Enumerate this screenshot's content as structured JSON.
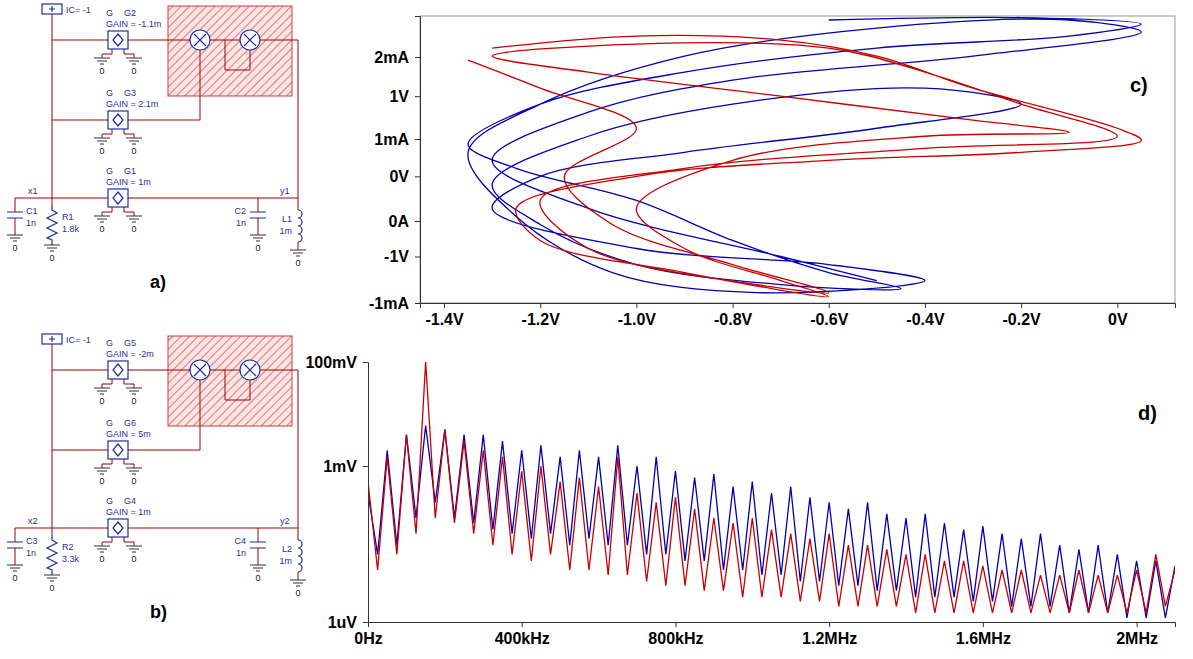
{
  "diagrams": [
    {
      "label": "a)",
      "initial_condition": "IC= -1",
      "ground": "0",
      "sources": [
        {
          "type": "G",
          "name": "G2",
          "gain": "GAIN = -1.1m"
        },
        {
          "type": "G",
          "name": "G3",
          "gain": "GAIN = 2.1m"
        },
        {
          "type": "G",
          "name": "G1",
          "gain": "GAIN = 1m"
        }
      ],
      "nodes": [
        "x1",
        "y1"
      ],
      "components": [
        {
          "name": "C1",
          "value": "1n"
        },
        {
          "name": "R1",
          "value": "1.8k"
        },
        {
          "name": "C2",
          "value": "1n"
        },
        {
          "name": "L1",
          "value": "1m"
        }
      ]
    },
    {
      "label": "b)",
      "initial_condition": "IC= -1",
      "ground": "0",
      "sources": [
        {
          "type": "G",
          "name": "G5",
          "gain": "GAIN = -2m"
        },
        {
          "type": "G",
          "name": "G6",
          "gain": "GAIN = 5m"
        },
        {
          "type": "G",
          "name": "G4",
          "gain": "GAIN = 1m"
        }
      ],
      "nodes": [
        "x2",
        "y2"
      ],
      "components": [
        {
          "name": "C3",
          "value": "1n"
        },
        {
          "name": "R2",
          "value": "3.3k"
        },
        {
          "name": "C4",
          "value": "1n"
        },
        {
          "name": "L2",
          "value": "1m"
        }
      ]
    }
  ],
  "chart_data": [
    {
      "type": "line",
      "title": "c)",
      "xlim": [
        -1.45,
        0.12
      ],
      "xticks": [
        {
          "value": -1.4,
          "label": "-1.4V"
        },
        {
          "value": -1.2,
          "label": "-1.2V"
        },
        {
          "value": -1.0,
          "label": "-1.0V"
        },
        {
          "value": -0.8,
          "label": "-0.8V"
        },
        {
          "value": -0.6,
          "label": "-0.6V"
        },
        {
          "value": -0.4,
          "label": "-0.4V"
        },
        {
          "value": -0.2,
          "label": "-0.2V"
        },
        {
          "value": 0,
          "label": "0V"
        }
      ],
      "ylim": [
        -1.58,
        2.0
      ],
      "yticks": [
        {
          "value": -1,
          "label": "-1V"
        },
        {
          "value": 0,
          "label": "0V"
        },
        {
          "value": 1,
          "label": "1V"
        }
      ],
      "y2lim": [
        -1.0,
        2.5
      ],
      "y2ticks": [
        {
          "value": -1,
          "label": "-1mA"
        },
        {
          "value": 0,
          "label": "0A"
        },
        {
          "value": 1,
          "label": "1mA"
        },
        {
          "value": 2,
          "label": "2mA"
        }
      ],
      "series": [
        {
          "color": "#0000b4",
          "line_style": "smooth",
          "x": [
            -0.6,
            -0.2,
            0.05,
            -0.1,
            -0.5,
            -0.9,
            -1.2,
            -1.35,
            -1.25,
            -1.0,
            -0.8,
            -0.6,
            -0.45,
            -0.7,
            -1.0,
            -1.2,
            -1.3,
            -1.1,
            -0.8,
            -0.4,
            -0.2,
            -0.5,
            -0.9,
            -1.2,
            -1.3,
            -1.0,
            -0.6,
            -0.4,
            -0.75,
            -1.05,
            -1.25,
            -1.35,
            -1.2,
            -0.9,
            -0.5,
            -0.1,
            0.05,
            -0.3,
            -0.8,
            -1.1,
            -1.3,
            -1.1,
            -0.7,
            -0.5
          ],
          "values": [
            1.95,
            1.98,
            1.9,
            1.75,
            1.6,
            1.3,
            0.9,
            0.4,
            0.1,
            -0.3,
            -0.8,
            -1.2,
            -1.4,
            -1.35,
            -1.1,
            -0.6,
            -0.1,
            0.5,
            0.9,
            1.1,
            0.9,
            0.6,
            0.3,
            0.0,
            -0.4,
            -0.9,
            -1.1,
            -1.3,
            -1.45,
            -1.2,
            -0.5,
            0.3,
            0.9,
            1.5,
            1.85,
            1.95,
            1.8,
            1.5,
            1.2,
            0.8,
            0.2,
            -0.4,
            -1.0,
            -1.3
          ]
        },
        {
          "color": "#c80000",
          "line_style": "smooth",
          "x": [
            -1.3,
            -1.0,
            -0.7,
            -0.5,
            -0.3,
            0.0,
            0.05,
            -0.2,
            -0.6,
            -1.0,
            -1.25,
            -1.2,
            -0.9,
            -0.6,
            -0.7,
            -0.9,
            -1.0,
            -0.8,
            -0.4,
            -0.1,
            -0.3,
            -0.7,
            -1.1,
            -1.3,
            -1.0,
            -0.6,
            -0.4,
            -0.2,
            0.0,
            -0.4,
            -0.9,
            -1.2,
            -1.1,
            -0.75,
            -0.6,
            -0.8,
            -1.05,
            -1.15,
            -1.0,
            -1.2,
            -1.35
          ],
          "values": [
            1.6,
            1.75,
            1.7,
            1.5,
            1.1,
            0.6,
            0.45,
            0.3,
            0.2,
            0.0,
            -0.4,
            -0.8,
            -1.2,
            -1.5,
            -1.3,
            -0.9,
            -0.4,
            0.2,
            0.5,
            0.55,
            0.7,
            1.0,
            1.3,
            1.5,
            1.65,
            1.6,
            1.3,
            0.9,
            0.5,
            0.35,
            0.1,
            -0.3,
            -0.9,
            -1.35,
            -1.45,
            -1.1,
            -0.6,
            0.0,
            0.6,
            1.1,
            1.45
          ]
        }
      ]
    },
    {
      "type": "line",
      "title": "d)",
      "log": "y",
      "xlim": [
        0,
        2100000
      ],
      "xticks": [
        {
          "value": 0,
          "label": "0Hz"
        },
        {
          "value": 400000,
          "label": "400kHz"
        },
        {
          "value": 800000,
          "label": "800kHz"
        },
        {
          "value": 1200000,
          "label": "1.2MHz"
        },
        {
          "value": 1600000,
          "label": "1.6MHz"
        },
        {
          "value": 2000000,
          "label": "2MHz"
        }
      ],
      "ylim": [
        1e-06,
        0.1
      ],
      "yticks": [
        {
          "value": 1e-06,
          "label": "1uV"
        },
        {
          "value": 0.001,
          "label": "1mV"
        },
        {
          "value": 0.1,
          "label": "100mV"
        }
      ],
      "x": [
        0,
        25000,
        50000,
        75000,
        100000,
        125000,
        150000,
        175000,
        200000,
        225000,
        250000,
        275000,
        300000,
        325000,
        350000,
        375000,
        400000,
        425000,
        450000,
        475000,
        500000,
        525000,
        550000,
        575000,
        600000,
        625000,
        650000,
        675000,
        700000,
        725000,
        750000,
        775000,
        800000,
        825000,
        850000,
        875000,
        900000,
        925000,
        950000,
        975000,
        1000000,
        1025000,
        1050000,
        1075000,
        1100000,
        1125000,
        1150000,
        1175000,
        1200000,
        1225000,
        1250000,
        1275000,
        1300000,
        1325000,
        1350000,
        1375000,
        1400000,
        1425000,
        1450000,
        1475000,
        1500000,
        1525000,
        1550000,
        1575000,
        1600000,
        1625000,
        1650000,
        1675000,
        1700000,
        1725000,
        1750000,
        1775000,
        1800000,
        1825000,
        1850000,
        1875000,
        1900000,
        1925000,
        1950000,
        1975000,
        2000000,
        2025000,
        2050000,
        2075000,
        2100000
      ],
      "series": [
        {
          "color": "#0000b4",
          "values": [
            0.0003,
            2e-05,
            0.002,
            3e-05,
            0.004,
            0.0001,
            0.006,
            0.0002,
            0.005,
            0.0001,
            0.004,
            8e-05,
            0.004,
            6e-05,
            0.003,
            5e-05,
            0.002,
            4e-05,
            0.0025,
            5e-05,
            0.0015,
            3e-05,
            0.002,
            4e-05,
            0.0015,
            3e-05,
            0.0025,
            3e-05,
            0.001,
            2e-05,
            0.0015,
            2e-05,
            0.0008,
            1.5e-05,
            0.0006,
            1.5e-05,
            0.0007,
            1e-05,
            0.0004,
            1e-05,
            0.0005,
            8e-06,
            0.0003,
            8e-06,
            0.0004,
            6e-06,
            0.00025,
            6e-06,
            0.0002,
            5e-06,
            0.00015,
            5e-06,
            0.0002,
            4e-06,
            0.00012,
            4e-06,
            0.0001,
            3e-06,
            0.00012,
            3e-06,
            8e-05,
            3e-06,
            6e-05,
            2.5e-06,
            7e-05,
            2.5e-06,
            5e-05,
            2e-06,
            4e-05,
            2e-06,
            5e-05,
            2e-06,
            3e-05,
            1.5e-06,
            2.5e-05,
            1.5e-06,
            3e-05,
            1.5e-06,
            2e-05,
            1.2e-06,
            1.5e-05,
            1.2e-06,
            1.5e-05,
            1.2e-06,
            1.2e-05
          ]
        },
        {
          "color": "#c80000",
          "values": [
            0.0005,
            1e-05,
            0.0015,
            2e-05,
            0.004,
            5e-05,
            0.1,
            0.0001,
            0.005,
            8e-05,
            0.003,
            5e-05,
            0.002,
            3e-05,
            0.0015,
            2e-05,
            0.0008,
            1.5e-05,
            0.001,
            2e-05,
            0.0005,
            1e-05,
            0.0006,
            1e-05,
            0.0004,
            8e-06,
            0.0015,
            8e-06,
            0.0003,
            6e-06,
            0.0002,
            5e-06,
            0.00025,
            5e-06,
            0.00015,
            4e-06,
            0.0001,
            4e-06,
            8e-05,
            3e-06,
            0.0001,
            3e-06,
            6e-05,
            3e-06,
            5e-05,
            2.5e-06,
            4e-05,
            2.5e-06,
            5e-05,
            2e-06,
            3e-05,
            2e-06,
            3e-05,
            2e-06,
            2.5e-05,
            2e-06,
            2e-05,
            1.5e-06,
            2e-05,
            1.5e-06,
            1.5e-05,
            1.5e-06,
            1.5e-05,
            1.5e-06,
            1.2e-05,
            1.5e-06,
            1e-05,
            1.5e-06,
            1e-05,
            1.5e-06,
            8e-06,
            1.5e-06,
            8e-06,
            1.5e-06,
            1e-05,
            1.5e-06,
            8e-06,
            1.5e-06,
            8e-06,
            1.5e-06,
            1e-05,
            1.5e-06,
            2e-05,
            2e-06,
            1e-05
          ]
        }
      ]
    }
  ]
}
